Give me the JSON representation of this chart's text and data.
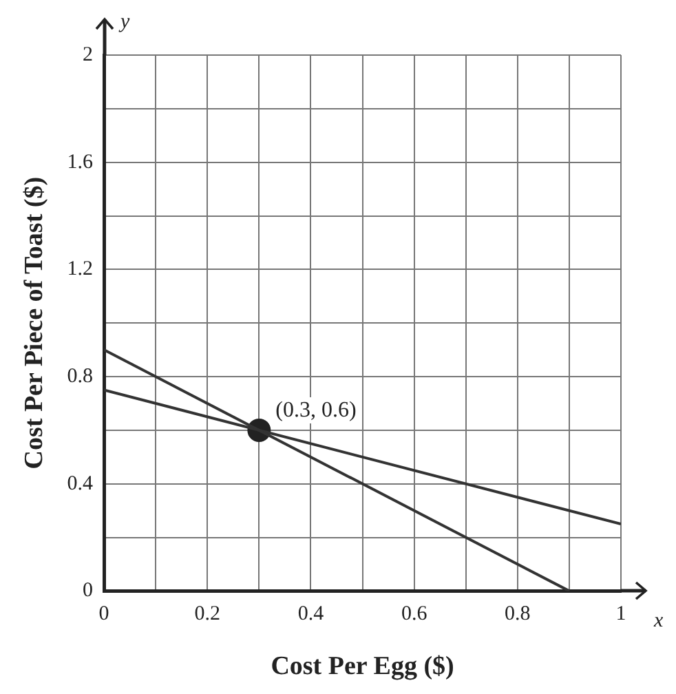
{
  "chart_data": {
    "type": "line",
    "xlabel": "Cost Per Egg ($)",
    "ylabel": "Cost Per Piece of Toast ($)",
    "xlim": [
      0,
      1
    ],
    "ylim": [
      0,
      2
    ],
    "xticks": [
      0,
      {
        "value": 0.1,
        "label": null
      },
      0.2,
      {
        "value": 0.3,
        "label": null
      },
      0.4,
      {
        "value": 0.5,
        "label": null
      },
      0.6,
      {
        "value": 0.7,
        "label": null
      },
      0.8,
      {
        "value": 0.9,
        "label": null
      },
      1
    ],
    "yticks": [
      0,
      {
        "value": 0.2,
        "label": null
      },
      0.4,
      {
        "value": 0.6,
        "label": null
      },
      0.8,
      {
        "value": 1,
        "label": null
      },
      1.2,
      {
        "value": 1.4,
        "label": null
      },
      1.6,
      {
        "value": 1.8,
        "label": null
      },
      2
    ],
    "grid": true,
    "legend": false,
    "series": [
      {
        "type": "line",
        "color": "#333333",
        "x": [
          0,
          0.9
        ],
        "values": [
          0.9,
          0
        ],
        "marker": "none"
      },
      {
        "type": "line",
        "color": "#333333",
        "x": [
          0,
          1
        ],
        "values": [
          0.75,
          0.25
        ],
        "marker": "none"
      },
      {
        "type": "scatter",
        "color": "#222222",
        "x": [
          0.3
        ],
        "values": [
          0.6
        ],
        "marker": "circle"
      }
    ],
    "annotations": [
      "x",
      "y",
      {
        "text": "(0.3, 0.6)",
        "x": 0.3,
        "y": 0.6
      }
    ]
  }
}
